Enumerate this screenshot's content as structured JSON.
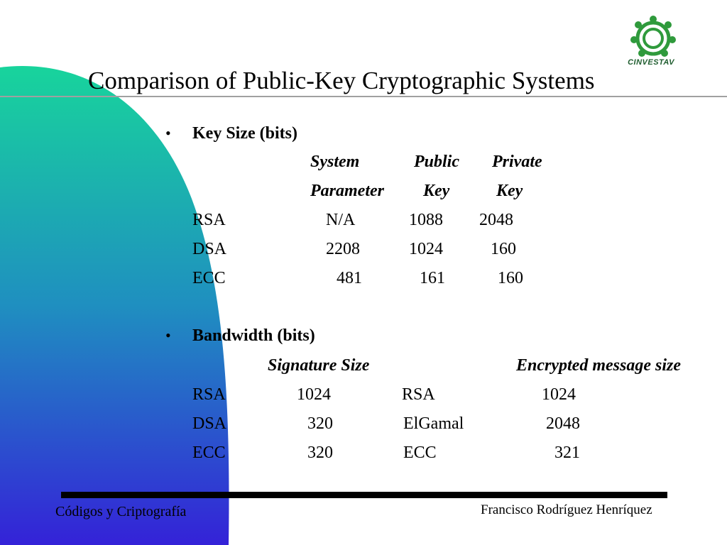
{
  "slide": {
    "title": "Comparison of Public-Key Cryptographic Systems",
    "logo_text": "CINVESTAV",
    "colors": {
      "gradient_top": "#18d49c",
      "gradient_mid": "#1f8fc0",
      "gradient_bottom": "#3422d8"
    }
  },
  "key_size": {
    "heading": "Key Size (bits)",
    "header_row1": {
      "system": "System",
      "public": "Public",
      "private": "Private"
    },
    "header_row2": {
      "system": "Parameter",
      "public": "Key",
      "private": "Key"
    },
    "rows": [
      {
        "name": "RSA",
        "system": "N/A",
        "public": "1088",
        "private": "2048"
      },
      {
        "name": "DSA",
        "system": "2208",
        "public": "1024",
        "private": "160"
      },
      {
        "name": "ECC",
        "system": "481",
        "public": "161",
        "private": "160"
      }
    ]
  },
  "bandwidth": {
    "heading": "Bandwidth (bits)",
    "col_signature": "Signature Size",
    "col_encrypted": "Encrypted message size",
    "rows": [
      {
        "sig_name": "RSA",
        "sig_value": "1024",
        "enc_name": "RSA",
        "enc_value": "1024"
      },
      {
        "sig_name": "DSA",
        "sig_value": "320",
        "enc_name": "ElGamal",
        "enc_value": "2048"
      },
      {
        "sig_name": "ECC",
        "sig_value": "320",
        "enc_name": "ECC",
        "enc_value": "321"
      }
    ]
  },
  "footer": {
    "left": "Códigos y Criptografía",
    "right": "Francisco Rodríguez Henríquez"
  }
}
